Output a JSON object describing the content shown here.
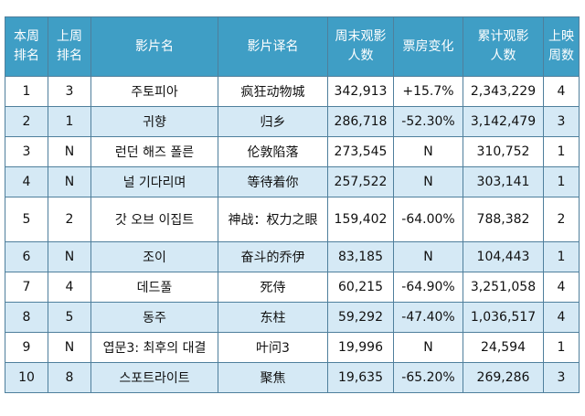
{
  "columns": [
    {
      "lines": [
        "本周",
        "排名"
      ]
    },
    {
      "lines": [
        "上周",
        "排名"
      ]
    },
    {
      "lines": [
        "影片名"
      ]
    },
    {
      "lines": [
        "影片译名"
      ]
    },
    {
      "lines": [
        "周末观影",
        "人数"
      ]
    },
    {
      "lines": [
        "票房变化"
      ]
    },
    {
      "lines": [
        "累计观影",
        "人数"
      ]
    },
    {
      "lines": [
        "上映",
        "周数"
      ]
    }
  ],
  "rows": [
    {
      "rank": "1",
      "last_rank": "3",
      "title": "주토피아",
      "cn_title": "疯狂动物城",
      "weekend": "342,913",
      "change": "+15.7%",
      "total": "2,343,229",
      "weeks": "4"
    },
    {
      "rank": "2",
      "last_rank": "1",
      "title": "귀향",
      "cn_title": "归乡",
      "weekend": "286,718",
      "change": "-52.30%",
      "total": "3,142,479",
      "weeks": "3"
    },
    {
      "rank": "3",
      "last_rank": "N",
      "title": "런던 해즈 폴른",
      "cn_title": "伦敦陷落",
      "weekend": "273,545",
      "change": "N",
      "total": "310,752",
      "weeks": "1"
    },
    {
      "rank": "4",
      "last_rank": "N",
      "title": "널 기다리며",
      "cn_title": "等待着你",
      "weekend": "257,522",
      "change": "N",
      "total": "303,141",
      "weeks": "1"
    },
    {
      "rank": "5",
      "last_rank": "2",
      "title": "갓 오브 이집트",
      "cn_title": "神战：权力之眼",
      "weekend": "159,402",
      "change": "-64.00%",
      "total": "788,382",
      "weeks": "2"
    },
    {
      "rank": "6",
      "last_rank": "N",
      "title": "조이",
      "cn_title": "奋斗的乔伊",
      "weekend": "83,185",
      "change": "N",
      "total": "104,443",
      "weeks": "1"
    },
    {
      "rank": "7",
      "last_rank": "4",
      "title": "데드풀",
      "cn_title": "死侍",
      "weekend": "60,215",
      "change": "-64.90%",
      "total": "3,251,058",
      "weeks": "4"
    },
    {
      "rank": "8",
      "last_rank": "5",
      "title": "동주",
      "cn_title": "东柱",
      "weekend": "59,292",
      "change": "-47.40%",
      "total": "1,036,517",
      "weeks": "4"
    },
    {
      "rank": "9",
      "last_rank": "N",
      "title": "엽문3: 최후의 대결",
      "cn_title": "叶问3",
      "weekend": "19,996",
      "change": "N",
      "total": "24,594",
      "weeks": "1"
    },
    {
      "rank": "10",
      "last_rank": "8",
      "title": "스포트라이트",
      "cn_title": "聚焦",
      "weekend": "19,635",
      "change": "-65.20%",
      "total": "269,286",
      "weeks": "3"
    }
  ]
}
